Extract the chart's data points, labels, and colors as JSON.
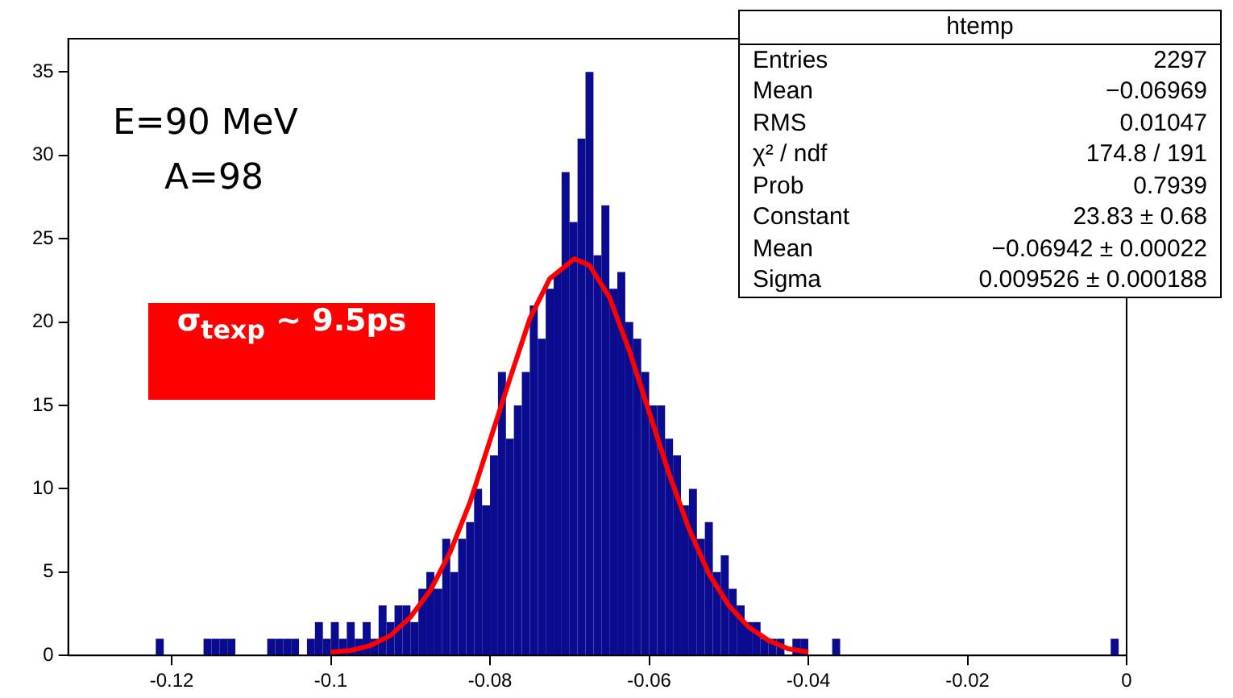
{
  "chart_data": {
    "type": "histogram",
    "xlim": [
      -0.133,
      0
    ],
    "xticks": [
      -0.12,
      -0.1,
      -0.08,
      -0.06,
      -0.04,
      -0.02,
      0
    ],
    "ylim": [
      0,
      37
    ],
    "yticks": [
      0,
      5,
      10,
      15,
      20,
      25,
      30,
      35
    ],
    "grid": false,
    "legend": false,
    "series": [
      {
        "type": "histogram",
        "color": "#0b0b8f",
        "bins": [
          -0.133,
          -0.132,
          -0.131,
          -0.13,
          -0.129,
          -0.128,
          -0.127,
          -0.126,
          -0.125,
          -0.124,
          -0.123,
          -0.122,
          -0.121,
          -0.12,
          -0.119,
          -0.118,
          -0.117,
          -0.116,
          -0.115,
          -0.114,
          -0.113,
          -0.112,
          -0.111,
          -0.11,
          -0.109,
          -0.108,
          -0.107,
          -0.106,
          -0.105,
          -0.104,
          -0.103,
          -0.102,
          -0.101,
          -0.1,
          -0.099,
          -0.098,
          -0.097,
          -0.096,
          -0.095,
          -0.094,
          -0.093,
          -0.092,
          -0.091,
          -0.09,
          -0.089,
          -0.088,
          -0.087,
          -0.086,
          -0.085,
          -0.084,
          -0.083,
          -0.082,
          -0.081,
          -0.08,
          -0.079,
          -0.078,
          -0.077,
          -0.076,
          -0.075,
          -0.074,
          -0.073,
          -0.072,
          -0.071,
          -0.07,
          -0.069,
          -0.068,
          -0.067,
          -0.066,
          -0.065,
          -0.064,
          -0.063,
          -0.062,
          -0.061,
          -0.06,
          -0.059,
          -0.058,
          -0.057,
          -0.056,
          -0.055,
          -0.054,
          -0.053,
          -0.052,
          -0.051,
          -0.05,
          -0.049,
          -0.048,
          -0.047,
          -0.046,
          -0.045,
          -0.044,
          -0.043,
          -0.042,
          -0.041,
          -0.04,
          -0.039,
          -0.038,
          -0.037,
          -0.036,
          -0.035,
          -0.034,
          -0.033,
          -0.032,
          -0.031,
          -0.03,
          -0.029,
          -0.028,
          -0.027,
          -0.026,
          -0.025,
          -0.024,
          -0.023,
          -0.022,
          -0.021,
          -0.02,
          -0.019,
          -0.018,
          -0.017,
          -0.016,
          -0.015,
          -0.014,
          -0.013,
          -0.012,
          -0.011,
          -0.01,
          -0.009,
          -0.008,
          -0.007,
          -0.006,
          -0.005,
          -0.004,
          -0.003,
          -0.002,
          -0.001,
          0
        ],
        "values": [
          0,
          0,
          0,
          0,
          0,
          0,
          0,
          0,
          0,
          0,
          0,
          1,
          0,
          0,
          0,
          0,
          0,
          1,
          1,
          1,
          1,
          0,
          0,
          0,
          0,
          1,
          1,
          1,
          1,
          0,
          1,
          2,
          1,
          2,
          1,
          2,
          1,
          2,
          1,
          3,
          2,
          3,
          3,
          2,
          4,
          5,
          4,
          7,
          5,
          7,
          8,
          10,
          9,
          12,
          17,
          13,
          15,
          17,
          21,
          19,
          22,
          23,
          29,
          26,
          31,
          35,
          24,
          27,
          22,
          23,
          20,
          19,
          17,
          15,
          15,
          13,
          12,
          9,
          10,
          7,
          8,
          5,
          6,
          4,
          3,
          2,
          2,
          1,
          1,
          1,
          0,
          1,
          1,
          0,
          0,
          0,
          1,
          0,
          0,
          0,
          0,
          0,
          0,
          0,
          0,
          0,
          0,
          0,
          0,
          0,
          0,
          0,
          0,
          0,
          0,
          0,
          0,
          0,
          0,
          0,
          0,
          0,
          0,
          0,
          0,
          0,
          0,
          0,
          0,
          0,
          0,
          1,
          0
        ]
      },
      {
        "type": "line",
        "color": "#ff0000",
        "x": [
          -0.1,
          -0.0975,
          -0.095,
          -0.0925,
          -0.09,
          -0.0875,
          -0.085,
          -0.0825,
          -0.08,
          -0.0775,
          -0.075,
          -0.0725,
          -0.0694,
          -0.0675,
          -0.065,
          -0.0625,
          -0.06,
          -0.0575,
          -0.055,
          -0.0525,
          -0.05,
          -0.0475,
          -0.045,
          -0.0425,
          -0.04
        ],
        "values": [
          0.2,
          0.3,
          0.6,
          1.2,
          2.3,
          3.9,
          6.2,
          9.2,
          12.9,
          16.6,
          20.2,
          22.6,
          23.8,
          23.4,
          21.5,
          18.3,
          14.6,
          10.9,
          7.6,
          4.9,
          3.0,
          1.7,
          0.9,
          0.4,
          0.2
        ]
      }
    ],
    "annotations": [
      "E=90 MeV",
      "A=98",
      "σ$_{texp}$ ~ 9.5ps",
      "htemp",
      "Entries",
      "2297",
      "Mean",
      "−0.06969",
      "RMS",
      "0.01047",
      "χ² / ndf",
      "174.8 / 191",
      "Prob",
      "0.7939",
      "Constant",
      "23.83 ± 0.68",
      "Mean",
      "−0.06942 ± 0.00022",
      "Sigma",
      "0.009526 ± 0.000188"
    ]
  }
}
